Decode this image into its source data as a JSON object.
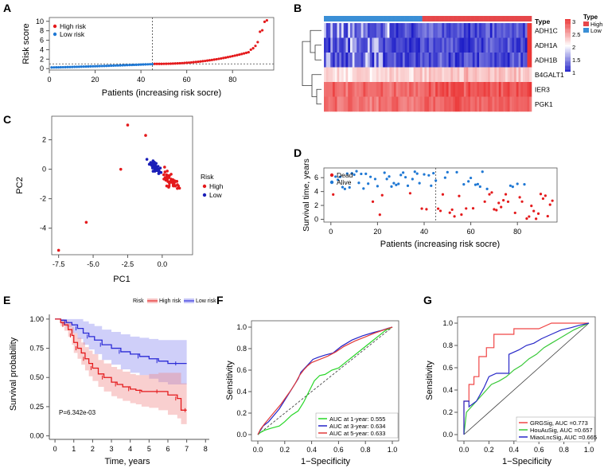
{
  "panels": {
    "A": {
      "label": "A",
      "chart_type": "scatter",
      "ylabel": "Risk score",
      "xlabel": "Patients (increasing risk socre)",
      "xticks": [
        "0",
        "20",
        "40",
        "60",
        "80"
      ],
      "yticks": [
        "0",
        "2",
        "4",
        "6",
        "8",
        "10"
      ],
      "xlim": [
        0,
        98
      ],
      "ylim": [
        -0.3,
        10.8
      ],
      "cutoff_x": 45,
      "cutoff_y": 1.0,
      "legend": [
        "High risk",
        "Low risk"
      ],
      "colors": {
        "high": "#e41a1c",
        "low": "#1f78d4"
      },
      "n_low": 45,
      "n_high": 50,
      "low_start": 0.25,
      "low_end": 0.95,
      "high_values_tail": [
        4.0,
        4.3,
        4.8,
        5.6,
        7.8,
        8.1,
        9.9,
        10.2
      ]
    },
    "B": {
      "label": "B",
      "chart_type": "heatmap",
      "genes": [
        "ADH1C",
        "ADH1A",
        "ADH1B",
        "B4GALT1",
        "IER3",
        "PGK1"
      ],
      "annotation_label": "Type",
      "legend_title": "Type",
      "legend_items": [
        "High",
        "Low"
      ],
      "colorbar_ticks": [
        "3",
        "2.5",
        "2",
        "1.5",
        "1"
      ],
      "n_low": 45,
      "n_high": 50,
      "colors": {
        "high": "#e6474a",
        "low": "#3a8fd6"
      }
    },
    "C": {
      "label": "C",
      "chart_type": "scatter",
      "xlabel": "PC1",
      "ylabel": "PC2",
      "xticks": [
        "-7.5",
        "-5.0",
        "-2.5",
        "0.0"
      ],
      "yticks": [
        "2",
        "0",
        "-2",
        "-4"
      ],
      "xlim": [
        -8,
        2.2
      ],
      "ylim": [
        -5.8,
        3.6
      ],
      "legend_title": "Risk",
      "legend": [
        "High",
        "Low"
      ],
      "colors": {
        "high": "#e41a1c",
        "low": "#1b1fb8"
      },
      "outliers": [
        [
          -7.5,
          -5.5
        ],
        [
          -5.5,
          -3.6
        ],
        [
          -2.5,
          3.0
        ],
        [
          -3.0,
          0.0
        ],
        [
          -1.2,
          2.3
        ]
      ]
    },
    "D": {
      "label": "D",
      "chart_type": "scatter",
      "ylabel": "Survival time, years",
      "xlabel": "Patients (increasing risk socre)",
      "xticks": [
        "0",
        "20",
        "40",
        "60",
        "80"
      ],
      "yticks": [
        "0",
        "2",
        "4",
        "6"
      ],
      "xlim": [
        -3,
        97
      ],
      "ylim": [
        -0.4,
        7.4
      ],
      "cutoff_x": 45,
      "legend": [
        "Dead",
        "Alive"
      ],
      "colors": {
        "dead": "#e41a1c",
        "alive": "#1f78d4"
      }
    },
    "E": {
      "label": "E",
      "chart_type": "line",
      "ylabel": "Survival probability",
      "xlabel": "Time, years",
      "legend_title": "Risk",
      "legend": [
        "High risk",
        "Low risk"
      ],
      "pvalue": "P=6.342e-03",
      "xticks": [
        "0",
        "1",
        "2",
        "3",
        "4",
        "5",
        "6",
        "7",
        "8"
      ],
      "yticks": [
        "1.00",
        "0.75",
        "0.50",
        "0.25",
        "0.00"
      ],
      "xlim": [
        -0.3,
        8.2
      ],
      "ylim": [
        -0.03,
        1.04
      ],
      "colors": {
        "high": "#e41a1c",
        "low": "#2b2bd6"
      },
      "series": [
        {
          "name": "High risk",
          "x": [
            0,
            0.3,
            0.5,
            0.7,
            0.9,
            1.0,
            1.2,
            1.4,
            1.6,
            1.8,
            2.0,
            2.3,
            2.6,
            3.0,
            3.3,
            3.6,
            4.0,
            4.3,
            4.6,
            5.0,
            5.5,
            6.0,
            6.5,
            6.7,
            7.0
          ],
          "y": [
            1.0,
            0.97,
            0.95,
            0.91,
            0.86,
            0.8,
            0.75,
            0.71,
            0.66,
            0.62,
            0.58,
            0.53,
            0.5,
            0.46,
            0.44,
            0.42,
            0.4,
            0.39,
            0.38,
            0.38,
            0.38,
            0.35,
            0.32,
            0.22,
            0.22
          ]
        },
        {
          "name": "Low risk",
          "x": [
            0,
            0.3,
            0.6,
            0.9,
            1.2,
            1.5,
            1.8,
            2.1,
            2.5,
            3.0,
            3.5,
            4.0,
            4.5,
            5.0,
            5.5,
            6.0,
            6.5,
            7.0
          ],
          "y": [
            1.0,
            0.99,
            0.97,
            0.95,
            0.92,
            0.88,
            0.85,
            0.82,
            0.78,
            0.75,
            0.72,
            0.7,
            0.68,
            0.66,
            0.64,
            0.62,
            0.62,
            0.62
          ]
        }
      ],
      "ci_upper_high": [
        1.0,
        1.0,
        0.99,
        0.97,
        0.93,
        0.88,
        0.84,
        0.8,
        0.76,
        0.73,
        0.7,
        0.65,
        0.62,
        0.59,
        0.57,
        0.55,
        0.53,
        0.52,
        0.52,
        0.53,
        0.54,
        0.54,
        0.54,
        0.45,
        0.45
      ],
      "ci_lower_high": [
        1.0,
        0.94,
        0.9,
        0.85,
        0.78,
        0.71,
        0.66,
        0.61,
        0.56,
        0.51,
        0.47,
        0.42,
        0.38,
        0.34,
        0.32,
        0.3,
        0.28,
        0.27,
        0.25,
        0.24,
        0.22,
        0.18,
        0.15,
        0.1,
        0.1
      ],
      "ci_upper_low": [
        1.0,
        1.0,
        1.0,
        1.0,
        1.0,
        0.98,
        0.96,
        0.94,
        0.91,
        0.89,
        0.87,
        0.85,
        0.84,
        0.83,
        0.82,
        0.82,
        0.82,
        0.82
      ],
      "ci_lower_low": [
        1.0,
        0.96,
        0.93,
        0.88,
        0.83,
        0.78,
        0.74,
        0.7,
        0.65,
        0.61,
        0.57,
        0.54,
        0.52,
        0.49,
        0.46,
        0.44,
        0.44,
        0.44
      ]
    },
    "F": {
      "label": "F",
      "chart_type": "line",
      "xlabel": "1−Specificity",
      "ylabel": "Sensitivity",
      "ticks": [
        "0.0",
        "0.2",
        "0.4",
        "0.6",
        "0.8",
        "1.0"
      ],
      "series": [
        {
          "name": "AUC at 1-year: 0.555",
          "color": "#27d627",
          "x": [
            0,
            0.02,
            0.05,
            0.1,
            0.16,
            0.2,
            0.25,
            0.3,
            0.34,
            0.38,
            0.42,
            0.46,
            0.5,
            0.55,
            0.6,
            0.66,
            0.72,
            0.78,
            0.84,
            0.9,
            0.95,
            1.0
          ],
          "y": [
            0,
            0.02,
            0.04,
            0.06,
            0.08,
            0.12,
            0.18,
            0.22,
            0.3,
            0.4,
            0.5,
            0.55,
            0.56,
            0.6,
            0.62,
            0.68,
            0.74,
            0.8,
            0.86,
            0.92,
            0.97,
            1.0
          ]
        },
        {
          "name": "AUC at 3-year: 0.634",
          "color": "#2222c8",
          "x": [
            0,
            0.02,
            0.04,
            0.08,
            0.12,
            0.16,
            0.2,
            0.24,
            0.27,
            0.3,
            0.32,
            0.35,
            0.38,
            0.41,
            0.45,
            0.5,
            0.56,
            0.62,
            0.7,
            0.78,
            0.86,
            0.92,
            0.97,
            1.0
          ],
          "y": [
            0,
            0.04,
            0.08,
            0.12,
            0.18,
            0.24,
            0.32,
            0.4,
            0.46,
            0.52,
            0.58,
            0.62,
            0.66,
            0.7,
            0.72,
            0.74,
            0.76,
            0.82,
            0.88,
            0.92,
            0.95,
            0.97,
            0.99,
            1.0
          ]
        },
        {
          "name": "AUC at 5-year: 0.633",
          "color": "#e03a3a",
          "x": [
            0,
            0.02,
            0.05,
            0.09,
            0.13,
            0.17,
            0.21,
            0.25,
            0.28,
            0.31,
            0.34,
            0.37,
            0.4,
            0.44,
            0.48,
            0.52,
            0.58,
            0.64,
            0.72,
            0.8,
            0.88,
            0.95,
            1.0
          ],
          "y": [
            0,
            0.05,
            0.1,
            0.16,
            0.22,
            0.28,
            0.35,
            0.42,
            0.48,
            0.55,
            0.6,
            0.64,
            0.67,
            0.69,
            0.71,
            0.73,
            0.77,
            0.82,
            0.87,
            0.91,
            0.95,
            0.98,
            1.0
          ]
        }
      ]
    },
    "G": {
      "label": "G",
      "chart_type": "line",
      "xlabel": "1−Specificity",
      "ylabel": "Sensitivity",
      "ticks": [
        "0.0",
        "0.2",
        "0.4",
        "0.6",
        "0.8",
        "1.0"
      ],
      "series": [
        {
          "name": "GRGSig, AUC =0.773",
          "color": "#f04646",
          "x": [
            0,
            0.0,
            0.04,
            0.04,
            0.08,
            0.08,
            0.12,
            0.12,
            0.18,
            0.18,
            0.24,
            0.24,
            0.32,
            0.4,
            0.4,
            0.5,
            0.6,
            0.7,
            0.82,
            0.9,
            1.0
          ],
          "y": [
            0,
            0.3,
            0.3,
            0.45,
            0.45,
            0.52,
            0.52,
            0.7,
            0.7,
            0.78,
            0.78,
            0.9,
            0.9,
            0.9,
            0.95,
            0.95,
            0.95,
            1.0,
            1.0,
            1.0,
            1.0
          ]
        },
        {
          "name": "HouAuSig, AUC =0.657",
          "color": "#38c838",
          "x": [
            0,
            0.02,
            0.06,
            0.1,
            0.14,
            0.18,
            0.22,
            0.28,
            0.34,
            0.4,
            0.46,
            0.52,
            0.58,
            0.64,
            0.7,
            0.76,
            0.82,
            0.88,
            0.94,
            1.0
          ],
          "y": [
            0,
            0.2,
            0.25,
            0.3,
            0.35,
            0.4,
            0.45,
            0.48,
            0.52,
            0.58,
            0.62,
            0.68,
            0.72,
            0.78,
            0.82,
            0.86,
            0.9,
            0.94,
            0.97,
            1.0
          ]
        },
        {
          "name": "MiaoLncSig, AUC =0.665",
          "color": "#2828c8",
          "x": [
            0,
            0.0,
            0.04,
            0.04,
            0.1,
            0.16,
            0.2,
            0.26,
            0.34,
            0.36,
            0.36,
            0.44,
            0.5,
            0.56,
            0.62,
            0.7,
            0.78,
            0.86,
            0.92,
            1.0
          ],
          "y": [
            0,
            0.3,
            0.3,
            0.25,
            0.3,
            0.42,
            0.52,
            0.55,
            0.55,
            0.55,
            0.72,
            0.76,
            0.8,
            0.82,
            0.86,
            0.9,
            0.94,
            0.96,
            0.98,
            1.0
          ]
        }
      ]
    }
  }
}
